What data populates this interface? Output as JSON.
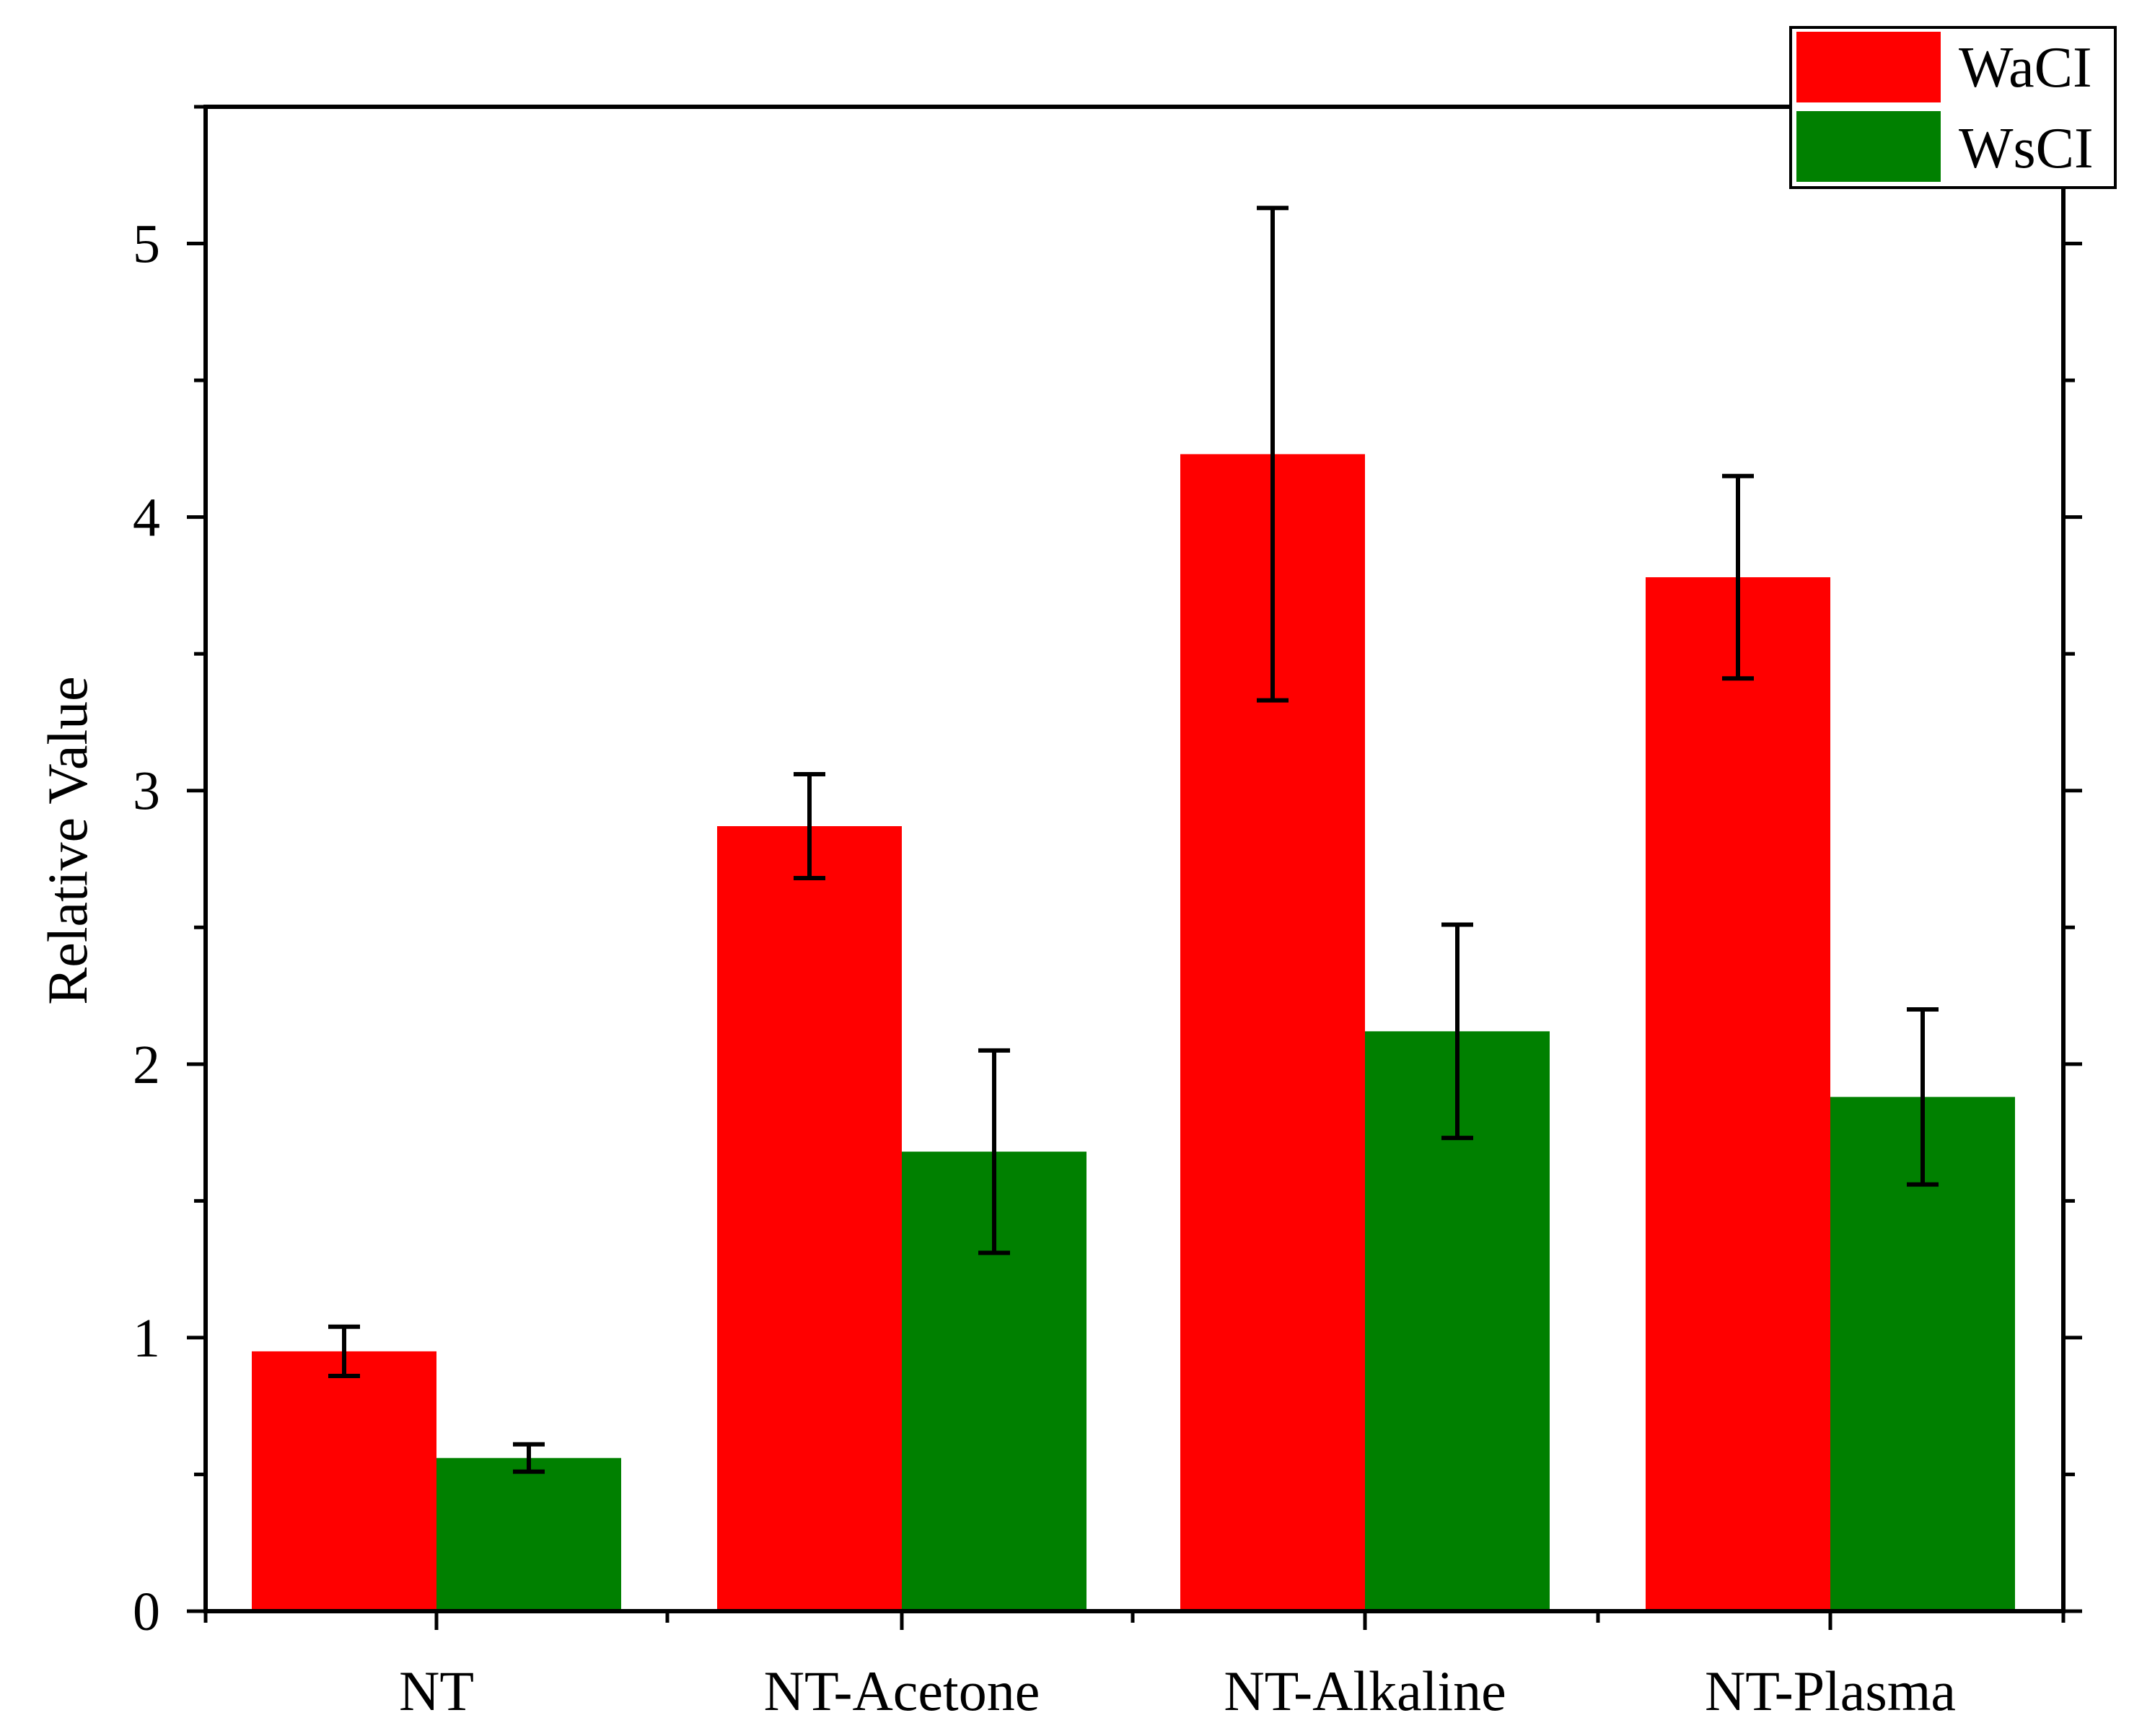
{
  "chart_data": {
    "type": "bar",
    "title": "",
    "xlabel": "",
    "ylabel": "Relative Value",
    "categories": [
      "NT",
      "NT-Acetone",
      "NT-Alkaline",
      "NT-Plasma"
    ],
    "ylim": [
      0,
      5.5
    ],
    "yticks": [
      0,
      1,
      2,
      3,
      4,
      5
    ],
    "grid": false,
    "legend_position": "top-right",
    "series": [
      {
        "name": "WaCI",
        "color": "#ff0000",
        "values": [
          0.95,
          2.87,
          4.23,
          3.78
        ],
        "errors": [
          0.09,
          0.19,
          0.9,
          0.37
        ]
      },
      {
        "name": "WsCI",
        "color": "#008000",
        "values": [
          0.56,
          1.68,
          2.12,
          1.88
        ],
        "errors": [
          0.05,
          0.37,
          0.39,
          0.32
        ]
      }
    ]
  }
}
